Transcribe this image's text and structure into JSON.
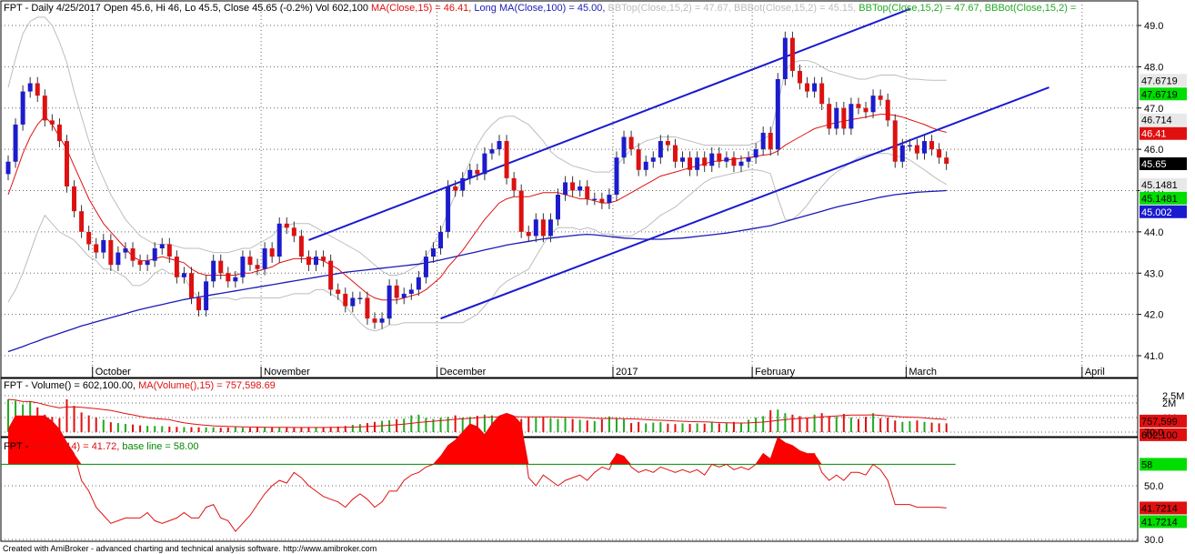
{
  "colors": {
    "up": "#1c1ccc",
    "down": "#dd1111",
    "ma_price": "#e01010",
    "ma_long": "#1a1ab8",
    "bb": "#bdbdbd",
    "trend": "#1a1ad0",
    "vol_up": "#22aa22",
    "vol_down": "#e01010",
    "vol_ma": "#e01010",
    "rsi_line": "#e01010",
    "rsi_fill": "#ff0000",
    "baseline": "#008800",
    "grid": "#666666",
    "box_gray": "#e8e8e8",
    "box_green": "#00dd00",
    "box_red": "#e01010",
    "box_blue": "#1a1ad0",
    "box_black": "#000000"
  },
  "price_panel": {
    "title_parts": [
      {
        "text": "FPT - Daily 4/25/2017 Open 45.6, Hi 46, Lo 45.5, Close 45.65 (-0.2%) Vol 602,100 ",
        "color": "#000000"
      },
      {
        "text": "MA(Close,15) = 46.41, ",
        "color": "#e01010"
      },
      {
        "text": "Long MA(Close,100) = 45.00, ",
        "color": "#1a1ab8"
      },
      {
        "text": "BBTop(Close,15,2) = 47.67, ",
        "color": "#bdbdbd"
      },
      {
        "text": "BBBot(Close,15,2) = 45.15, ",
        "color": "#bdbdbd"
      },
      {
        "text": "BBTop(Close,15,2) = 47.67, ",
        "color": "#22aa22"
      },
      {
        "text": "BBBot(Close,15,2) = ",
        "color": "#22aa22"
      }
    ],
    "y_ticks": [
      "41.0",
      "42.0",
      "43.0",
      "44.0",
      "45.0",
      "46.0",
      "47.0",
      "48.0",
      "49.0"
    ],
    "value_boxes": [
      {
        "text": "47.6719",
        "bg": "#e8e8e8",
        "fg": "#000000",
        "value": 47.6719
      },
      {
        "text": "47.6719",
        "bg": "#00dd00",
        "fg": "#000000",
        "value": 47.6719
      },
      {
        "text": "46.714",
        "bg": "#e8e8e8",
        "fg": "#000000",
        "value": 46.714
      },
      {
        "text": "46.41",
        "bg": "#e01010",
        "fg": "#ffffff",
        "value": 46.41
      },
      {
        "text": "45.65",
        "bg": "#000000",
        "fg": "#ffffff",
        "value": 45.65
      },
      {
        "text": "45.1481",
        "bg": "#e8e8e8",
        "fg": "#000000",
        "value": 45.1481
      },
      {
        "text": "45.1481",
        "bg": "#00dd00",
        "fg": "#000000",
        "value": 45.1481
      },
      {
        "text": "45.002",
        "bg": "#1a1ad0",
        "fg": "#ffffff",
        "value": 45.002
      }
    ],
    "months": [
      {
        "label": "October",
        "bar": 12
      },
      {
        "label": "November",
        "bar": 35
      },
      {
        "label": "December",
        "bar": 59
      },
      {
        "label": "2017",
        "bar": 83
      },
      {
        "label": "February",
        "bar": 102
      },
      {
        "label": "March",
        "bar": 123
      },
      {
        "label": "April",
        "bar": 147
      }
    ]
  },
  "volume_panel": {
    "title_parts": [
      {
        "text": "FPT - ",
        "color": "#000000"
      },
      {
        "text": "Volume() = 602,100.00, ",
        "color": "#000000"
      },
      {
        "text": "MA(Volume(),15) = 757,598.69",
        "color": "#e01010"
      }
    ],
    "y_ticks": [
      "1M",
      "2M",
      "2.5M"
    ],
    "value_boxes": [
      {
        "text": "757,599",
        "bg": "#e01010",
        "fg": "#000000",
        "value": 757599
      },
      {
        "text": "602,100",
        "bg": "#e01010",
        "fg": "#000000",
        "value": 602100
      }
    ]
  },
  "rsi_panel": {
    "title_parts": [
      {
        "text": "FPT - ",
        "color": "#000000"
      },
      {
        "text": "RSI-30(14) = 41.72, ",
        "color": "#e01010"
      },
      {
        "text": "base line = 58.00",
        "color": "#008800"
      }
    ],
    "y_ticks": [
      "30.0",
      "50.0",
      "70.0"
    ],
    "value_boxes": [
      {
        "text": "58",
        "bg": "#00dd00",
        "fg": "#000000",
        "value": 58
      },
      {
        "text": "41.7214",
        "bg": "#e01010",
        "fg": "#000000",
        "value": 41.7214
      },
      {
        "text": "41.7214",
        "bg": "#00dd00",
        "fg": "#000000",
        "value": 41.7214
      }
    ]
  },
  "footer": "Created with AmiBroker - advanced charting and technical analysis software. http://www.amibroker.com",
  "chart_data": {
    "type": "candlestick",
    "symbol": "FPT",
    "interval": "Daily",
    "ylim": [
      40.8,
      49.3
    ],
    "volume_ylim": [
      0,
      2700000
    ],
    "rsi_ylim": [
      30,
      80
    ],
    "rsi_baseline": 58,
    "x_labels": [
      "October",
      "November",
      "December",
      "2017",
      "February",
      "March",
      "April"
    ],
    "close": [
      45.7,
      46.6,
      47.4,
      47.6,
      47.3,
      46.7,
      46.6,
      46.2,
      45.1,
      44.5,
      44.0,
      43.7,
      43.5,
      43.8,
      43.2,
      43.5,
      43.6,
      43.3,
      43.2,
      43.3,
      43.6,
      43.7,
      43.4,
      42.9,
      43.0,
      42.4,
      42.1,
      42.8,
      43.3,
      43.0,
      42.8,
      42.9,
      43.4,
      43.2,
      43.1,
      43.6,
      43.4,
      44.2,
      44.1,
      43.9,
      43.4,
      43.2,
      43.4,
      43.3,
      42.6,
      42.5,
      42.2,
      42.4,
      42.4,
      41.9,
      41.8,
      41.9,
      42.7,
      42.4,
      42.5,
      42.6,
      42.9,
      43.4,
      43.6,
      44.0,
      45.1,
      45.0,
      45.3,
      45.5,
      45.4,
      45.9,
      46.0,
      46.2,
      45.3,
      45.0,
      44.0,
      43.9,
      44.3,
      43.9,
      44.3,
      44.9,
      45.2,
      45.0,
      45.1,
      44.8,
      44.8,
      44.7,
      44.9,
      45.8,
      46.3,
      46.0,
      45.5,
      45.7,
      45.8,
      46.2,
      46.1,
      45.7,
      45.8,
      45.5,
      45.8,
      45.6,
      45.9,
      45.7,
      45.8,
      45.6,
      45.7,
      45.8,
      46.0,
      46.4,
      46.0,
      47.7,
      48.7,
      47.9,
      47.6,
      47.4,
      47.6,
      47.1,
      46.5,
      47.0,
      46.5,
      47.1,
      47.0,
      46.9,
      47.3,
      47.2,
      46.7,
      45.7,
      46.1,
      46.1,
      45.9,
      46.2,
      46.0,
      45.8,
      45.65
    ],
    "volume": [
      2250000,
      2150000,
      1900000,
      2100000,
      1700000,
      1200000,
      1050000,
      950000,
      2250000,
      1800000,
      1350000,
      1150000,
      1000000,
      850000,
      680000,
      620000,
      560000,
      520000,
      460000,
      430000,
      420000,
      410000,
      380000,
      360000,
      350000,
      340000,
      330000,
      320000,
      330000,
      300000,
      320000,
      340000,
      310000,
      300000,
      320000,
      330000,
      340000,
      310000,
      320000,
      300000,
      340000,
      310000,
      350000,
      320000,
      330000,
      380000,
      420000,
      500000,
      550000,
      620000,
      700000,
      780000,
      820000,
      880000,
      920000,
      1150000,
      1200000,
      980000,
      900000,
      1000000,
      1050000,
      1150000,
      1000000,
      1050000,
      1120000,
      1200000,
      1150000,
      980000,
      1100000,
      1000000,
      900000,
      1050000,
      1000000,
      1020000,
      950000,
      900000,
      980000,
      900000,
      850000,
      800000,
      760000,
      880000,
      1080000,
      950000,
      880000,
      620000,
      700000,
      600000,
      650000,
      680000,
      580000,
      550000,
      600000,
      560000,
      600000,
      580000,
      700000,
      600000,
      650000,
      700000,
      600000,
      850000,
      1000000,
      1100000,
      1500000,
      1550000,
      1300000,
      1200000,
      1100000,
      1000000,
      1200000,
      1300000,
      1100000,
      1050000,
      1250000,
      1000000,
      900000,
      1050000,
      1300000,
      950000,
      1000000,
      800000,
      700000,
      750000,
      800000,
      700000,
      650000,
      600000,
      602100
    ],
    "rsi": [
      71,
      76,
      76,
      76,
      76,
      76,
      74,
      71,
      66,
      62,
      52,
      48,
      42,
      39,
      36,
      37,
      38,
      38,
      38,
      40,
      37,
      36,
      37,
      38,
      40,
      38,
      38,
      42,
      43,
      38,
      37,
      33,
      36,
      39,
      43,
      47,
      50,
      52,
      51,
      55,
      53,
      50,
      48,
      46,
      45,
      44,
      42,
      45,
      47,
      45,
      42,
      44,
      48,
      48,
      52,
      54,
      55,
      57,
      58,
      61,
      65,
      67,
      70,
      73,
      72,
      69,
      73,
      76,
      77,
      76,
      73,
      53,
      50,
      54,
      52,
      50,
      52,
      53,
      54,
      52,
      55,
      57,
      56,
      62,
      61,
      57,
      55,
      56,
      55,
      57,
      56,
      55,
      56,
      55,
      56,
      54,
      58,
      57,
      58,
      56,
      57,
      56,
      58,
      62,
      60,
      68,
      66,
      65,
      63,
      62,
      62,
      55,
      52,
      54,
      52,
      55,
      55,
      54,
      58,
      56,
      52,
      43,
      43,
      43,
      42,
      42,
      42,
      42,
      41.72
    ],
    "ma15": [
      44.9,
      45.4,
      45.9,
      46.3,
      46.6,
      46.8,
      46.6,
      46.3,
      46.0,
      45.6,
      45.2,
      44.8,
      44.5,
      44.2,
      44.0,
      43.8,
      43.6,
      43.4,
      43.3,
      43.3,
      43.35,
      43.4,
      43.35,
      43.3,
      43.25,
      43.1,
      43.0,
      42.95,
      42.95,
      42.95,
      42.95,
      42.95,
      43.0,
      43.0,
      43.05,
      43.1,
      43.15,
      43.25,
      43.3,
      43.35,
      43.35,
      43.35,
      43.35,
      43.3,
      43.2,
      43.1,
      42.95,
      42.8,
      42.65,
      42.5,
      42.4,
      42.35,
      42.35,
      42.35,
      42.4,
      42.45,
      42.5,
      42.6,
      42.75,
      42.9,
      43.15,
      43.35,
      43.55,
      43.8,
      44.05,
      44.3,
      44.5,
      44.7,
      44.8,
      44.85,
      44.85,
      44.85,
      44.9,
      44.95,
      44.95,
      44.95,
      44.9,
      44.85,
      44.8,
      44.8,
      44.75,
      44.7,
      44.7,
      44.75,
      44.85,
      44.95,
      45.05,
      45.15,
      45.25,
      45.35,
      45.4,
      45.45,
      45.5,
      45.55,
      45.6,
      45.65,
      45.7,
      45.72,
      45.74,
      45.76,
      45.78,
      45.8,
      45.83,
      45.86,
      45.88,
      45.96,
      46.1,
      46.2,
      46.3,
      46.4,
      46.5,
      46.55,
      46.6,
      46.65,
      46.68,
      46.72,
      46.75,
      46.78,
      46.82,
      46.85,
      46.85,
      46.82,
      46.78,
      46.72,
      46.66,
      46.6,
      46.52,
      46.46,
      46.41
    ],
    "bbtop": [
      47.5,
      48.2,
      48.8,
      49.1,
      49.2,
      49.2,
      49.0,
      48.6,
      48.1,
      47.4,
      46.8,
      46.2,
      45.7,
      45.3,
      44.9,
      44.6,
      44.3,
      44.1,
      43.9,
      43.8,
      43.7,
      43.7,
      43.7,
      43.65,
      43.6,
      43.6,
      43.6,
      43.55,
      43.5,
      43.5,
      43.5,
      43.55,
      43.6,
      43.6,
      43.7,
      43.8,
      43.9,
      44.1,
      44.15,
      44.2,
      44.2,
      44.2,
      44.1,
      44.0,
      43.9,
      43.8,
      43.7,
      43.6,
      43.5,
      43.35,
      43.2,
      43.05,
      42.95,
      42.95,
      43.0,
      43.1,
      43.2,
      43.4,
      43.7,
      44.0,
      44.5,
      44.9,
      45.3,
      45.7,
      46.1,
      46.4,
      46.6,
      46.75,
      46.8,
      46.8,
      46.7,
      46.6,
      46.4,
      46.2,
      45.95,
      45.8,
      45.7,
      45.6,
      45.55,
      45.5,
      45.45,
      45.45,
      45.45,
      45.6,
      45.8,
      46.0,
      46.1,
      46.2,
      46.25,
      46.3,
      46.3,
      46.3,
      46.25,
      46.2,
      46.15,
      46.1,
      46.1,
      46.1,
      46.1,
      46.1,
      46.1,
      46.1,
      46.15,
      46.25,
      46.35,
      47.1,
      47.9,
      48.1,
      48.15,
      48.15,
      48.1,
      48.0,
      47.9,
      47.85,
      47.8,
      47.75,
      47.7,
      47.7,
      47.75,
      47.8,
      47.8,
      47.8,
      47.75,
      47.7,
      47.7,
      47.68,
      47.67,
      47.67,
      47.67
    ],
    "bbbot": [
      42.3,
      42.6,
      43.0,
      43.5,
      44.0,
      44.4,
      44.2,
      44.0,
      43.9,
      43.8,
      43.6,
      43.4,
      43.3,
      43.1,
      43.1,
      43.0,
      42.9,
      42.7,
      42.7,
      42.8,
      43.0,
      43.1,
      43.0,
      42.95,
      42.9,
      42.6,
      42.4,
      42.35,
      42.4,
      42.4,
      42.4,
      42.35,
      42.4,
      42.4,
      42.4,
      42.4,
      42.4,
      42.4,
      42.45,
      42.5,
      42.5,
      42.5,
      42.6,
      42.6,
      42.5,
      42.4,
      42.2,
      42.0,
      41.8,
      41.65,
      41.6,
      41.65,
      41.75,
      41.75,
      41.8,
      41.8,
      41.8,
      41.8,
      41.8,
      41.8,
      41.8,
      41.8,
      41.8,
      41.9,
      42.0,
      42.2,
      42.4,
      42.65,
      42.8,
      42.9,
      43.0,
      43.1,
      43.4,
      43.7,
      43.95,
      44.1,
      44.1,
      44.1,
      44.05,
      44.1,
      44.05,
      43.95,
      43.95,
      43.9,
      43.9,
      43.9,
      44.0,
      44.1,
      44.25,
      44.4,
      44.5,
      44.6,
      44.75,
      44.9,
      45.05,
      45.2,
      45.3,
      45.34,
      45.38,
      45.42,
      45.46,
      45.5,
      45.5,
      45.47,
      45.41,
      44.82,
      44.3,
      44.3,
      44.45,
      44.65,
      44.9,
      45.1,
      45.3,
      45.45,
      45.56,
      45.69,
      45.8,
      45.86,
      45.89,
      45.9,
      45.9,
      45.84,
      45.81,
      45.74,
      45.62,
      45.5,
      45.37,
      45.25,
      45.15
    ],
    "ma100": [
      41.1,
      41.16,
      41.22,
      41.29,
      41.35,
      41.42,
      41.48,
      41.54,
      41.6,
      41.66,
      41.72,
      41.77,
      41.82,
      41.87,
      41.92,
      41.97,
      42.02,
      42.07,
      42.12,
      42.16,
      42.2,
      42.24,
      42.28,
      42.32,
      42.36,
      42.39,
      42.42,
      42.45,
      42.48,
      42.51,
      42.54,
      42.57,
      42.6,
      42.63,
      42.66,
      42.69,
      42.72,
      42.75,
      42.78,
      42.81,
      42.84,
      42.87,
      42.9,
      42.93,
      42.96,
      42.99,
      43.02,
      43.04,
      43.06,
      43.08,
      43.1,
      43.12,
      43.14,
      43.16,
      43.18,
      43.2,
      43.22,
      43.25,
      43.28,
      43.32,
      43.36,
      43.4,
      43.44,
      43.48,
      43.52,
      43.56,
      43.6,
      43.64,
      43.68,
      43.71,
      43.74,
      43.77,
      43.8,
      43.83,
      43.85,
      43.87,
      43.89,
      43.91,
      43.93,
      43.94,
      43.93,
      43.91,
      43.89,
      43.87,
      43.85,
      43.84,
      43.83,
      43.82,
      43.82,
      43.82,
      43.83,
      43.84,
      43.85,
      43.87,
      43.89,
      43.91,
      43.93,
      43.95,
      43.97,
      44.0,
      44.03,
      44.06,
      44.09,
      44.12,
      44.15,
      44.2,
      44.25,
      44.3,
      44.35,
      44.4,
      44.45,
      44.5,
      44.55,
      44.6,
      44.64,
      44.68,
      44.72,
      44.76,
      44.8,
      44.84,
      44.87,
      44.9,
      44.92,
      44.94,
      44.96,
      44.97,
      44.98,
      44.99,
      45.0
    ],
    "trend_lines": [
      {
        "from": {
          "bar": 41,
          "value": 43.8
        },
        "to": {
          "bar": 123,
          "value": 49.4
        }
      },
      {
        "from": {
          "bar": 59,
          "value": 41.9
        },
        "to": {
          "bar": 142,
          "value": 47.5
        }
      }
    ]
  }
}
